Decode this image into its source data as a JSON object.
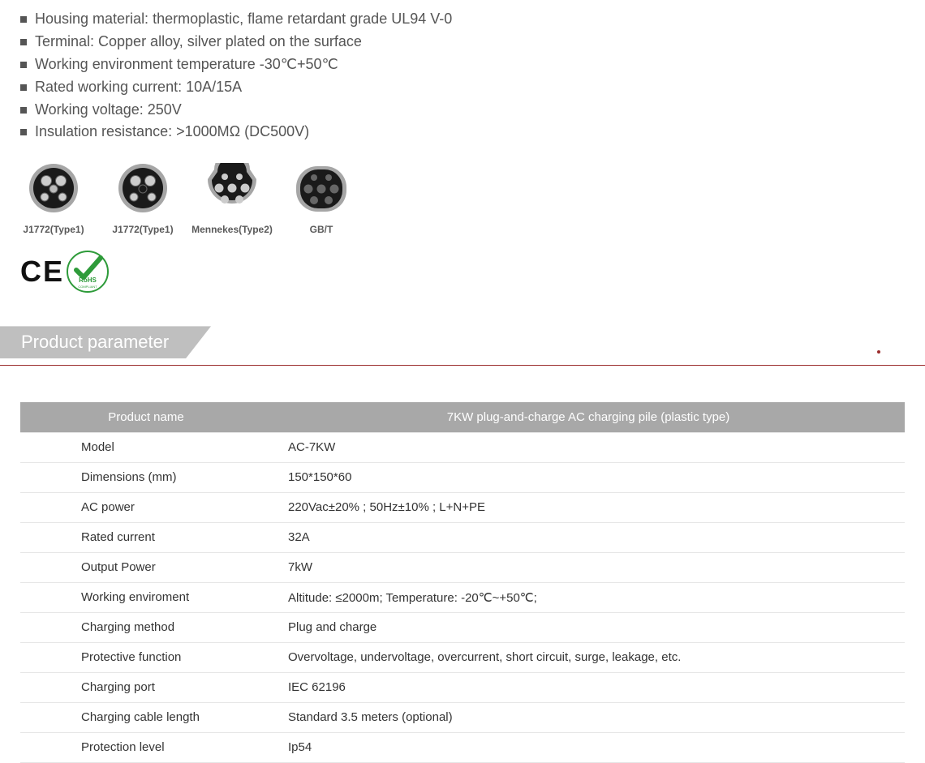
{
  "specs": [
    "Housing material: thermoplastic, flame retardant grade UL94 V-0",
    "Terminal: Copper alloy, silver plated on the surface",
    "Working environment temperature -30℃+50℃",
    "Rated working current: 10A/15A",
    "Working voltage: 250V",
    "Insulation resistance: >1000MΩ (DC500V)"
  ],
  "connectors": [
    {
      "label": "J1772(Type1)",
      "type": "type1a"
    },
    {
      "label": "J1772(Type1)",
      "type": "type1b"
    },
    {
      "label": "Mennekes(Type2)",
      "type": "type2"
    },
    {
      "label": "GB/T",
      "type": "gbt"
    }
  ],
  "badges": {
    "ce": "C E",
    "rohs": "RoHS"
  },
  "section_title": "Product parameter",
  "table": {
    "header_left": "Product name",
    "header_right": "7KW plug-and-charge AC charging pile (plastic type)",
    "rows": [
      {
        "k": "Model",
        "v": "AC-7KW"
      },
      {
        "k": "Dimensions (mm)",
        "v": "150*150*60"
      },
      {
        "k": "AC power",
        "v": "220Vac±20% ; 50Hz±10% ; L+N+PE"
      },
      {
        "k": "Rated current",
        "v": "32A"
      },
      {
        "k": "Output Power",
        "v": "7kW"
      },
      {
        "k": "Working enviroment",
        "v": "Altitude: ≤2000m; Temperature: -20℃~+50℃;"
      },
      {
        "k": "Charging method",
        "v": "Plug and charge"
      },
      {
        "k": "Protective function",
        "v": "Overvoltage, undervoltage, overcurrent, short circuit, surge, leakage, etc."
      },
      {
        "k": "Charging port",
        "v": "IEC   62196"
      },
      {
        "k": "Charging cable length",
        "v": "Standard 3.5 meters (optional)"
      },
      {
        "k": "Protection level",
        "v": "Ip54"
      }
    ]
  },
  "colors": {
    "text": "#555555",
    "header_band": "#bfbfbf",
    "rule": "#9b2c2c",
    "table_header_bg": "#a8a8a8",
    "row_border": "#e6e6e6",
    "connector_ring": "#a6a6a6",
    "connector_body": "#1a1a1a",
    "rohs_green": "#2e9b3a"
  }
}
